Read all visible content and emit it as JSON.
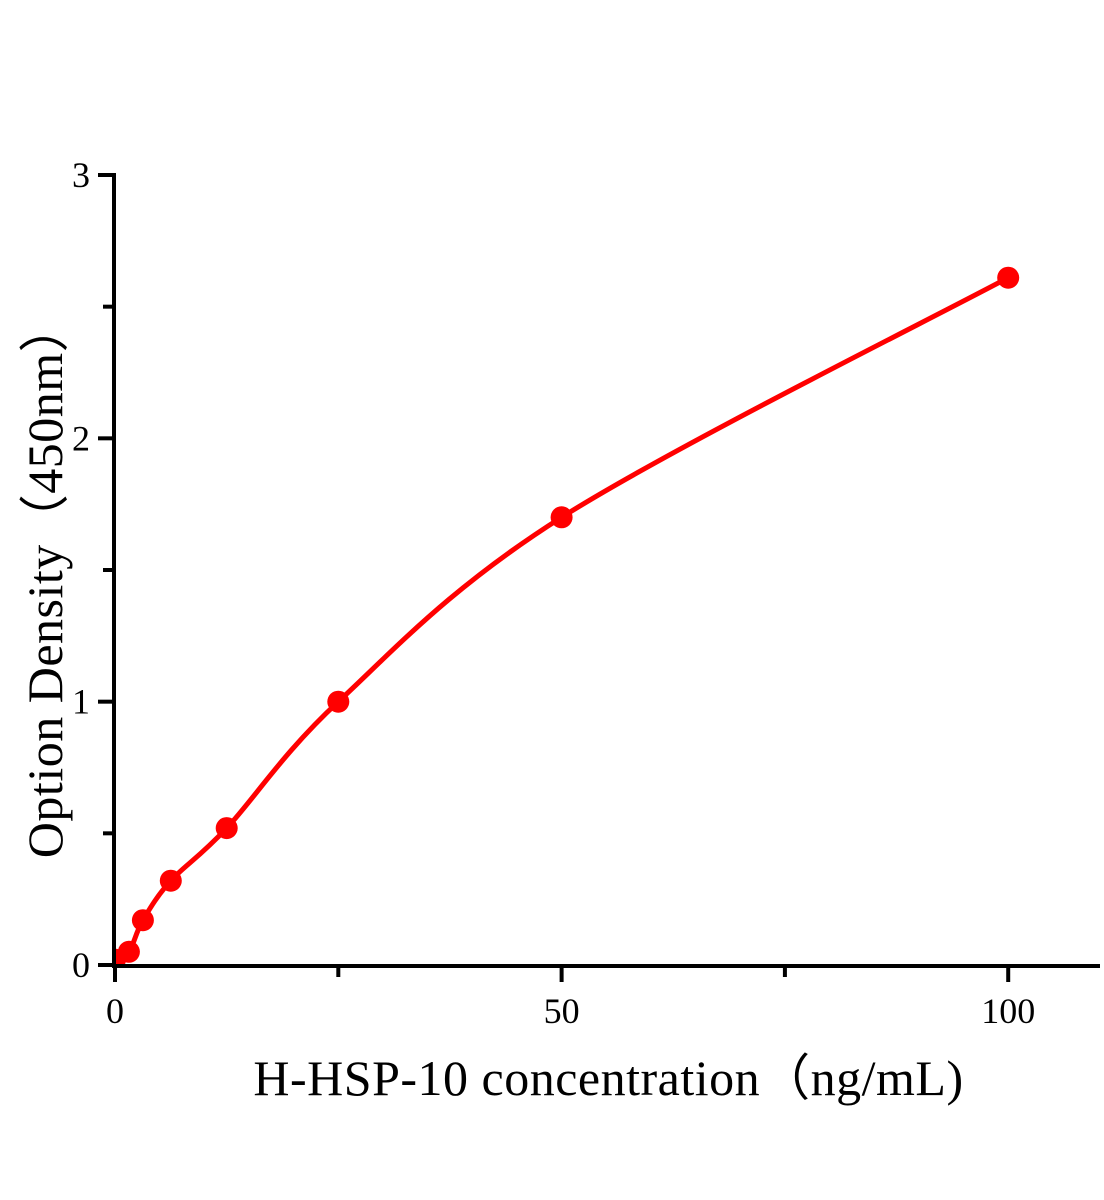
{
  "chart_data": {
    "type": "line",
    "subtype": "elisa-standard-curve-scatter-with-fitted-line",
    "title": "",
    "xlabel": "H-HSP-10 concentration（ng/mL)",
    "ylabel": "Option Density（450nm）",
    "x": [
      0,
      1.56,
      3.125,
      6.25,
      12.5,
      25,
      50,
      100
    ],
    "y": [
      0.02,
      0.05,
      0.17,
      0.32,
      0.52,
      1.0,
      1.7,
      2.61
    ],
    "xlim": [
      0,
      110.5
    ],
    "ylim": [
      0,
      3
    ],
    "x_ticks": {
      "major": [
        {
          "value": 0,
          "label": "0"
        },
        {
          "value": 50,
          "label": "50"
        },
        {
          "value": 100,
          "label": "100"
        }
      ],
      "minor": [
        25,
        75
      ]
    },
    "y_ticks": {
      "major": [
        {
          "value": 0,
          "label": "0"
        },
        {
          "value": 1,
          "label": "1"
        },
        {
          "value": 2,
          "label": "2"
        },
        {
          "value": 3,
          "label": "3"
        }
      ],
      "minor": [
        0.5,
        1.5,
        2.5
      ]
    },
    "grid": false,
    "legend": "none",
    "marker": "circle",
    "colors": {
      "curve": "#ff0000",
      "marker": "#ff0000",
      "axis": "#000000",
      "text": "#000000",
      "background": "#ffffff"
    }
  }
}
